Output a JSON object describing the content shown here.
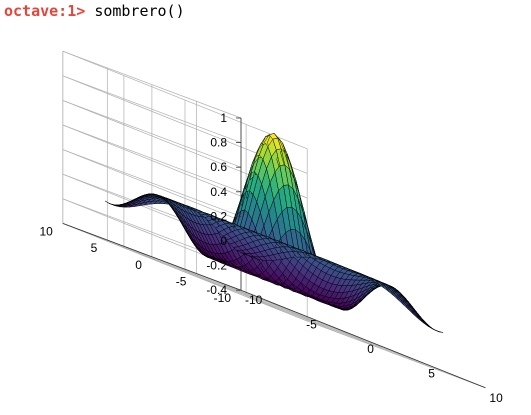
{
  "console": {
    "prompt": "octave:1>",
    "command": "sombrero()",
    "prompt_color": "#e8443a",
    "command_color": "#000000"
  },
  "chart_data": {
    "type": "surface",
    "function": "z = sin(r)/r, r = sqrt(x^2 + y^2)",
    "grid_points": 41,
    "x": {
      "range": [
        -8,
        8
      ],
      "ticks": [
        -10,
        -5,
        0,
        5,
        10
      ],
      "tick_labels": [
        "-10",
        "-5",
        "0",
        "5",
        "10"
      ]
    },
    "y": {
      "range": [
        -8,
        8
      ],
      "ticks": [
        -10,
        -5,
        0,
        5,
        10
      ],
      "tick_labels": [
        "-10",
        "-5",
        "0",
        "5",
        "10"
      ]
    },
    "z": {
      "range": [
        -0.4,
        1
      ],
      "ticks": [
        -0.4,
        -0.2,
        0,
        0.2,
        0.4,
        0.6,
        0.8,
        1
      ],
      "tick_labels": [
        "-0.4",
        "-0.2",
        "0",
        "0.2",
        "0.4",
        "0.6",
        "0.8",
        "1"
      ]
    },
    "colormap": "viridis",
    "colormap_stops": [
      "#440154",
      "#472d7b",
      "#3b528b",
      "#2c728e",
      "#21918c",
      "#28ae80",
      "#5ec962",
      "#addc30",
      "#fde725"
    ],
    "mesh_color": "#000000",
    "grid": true,
    "title": "",
    "xlabel": "",
    "ylabel": "",
    "zlabel": ""
  }
}
